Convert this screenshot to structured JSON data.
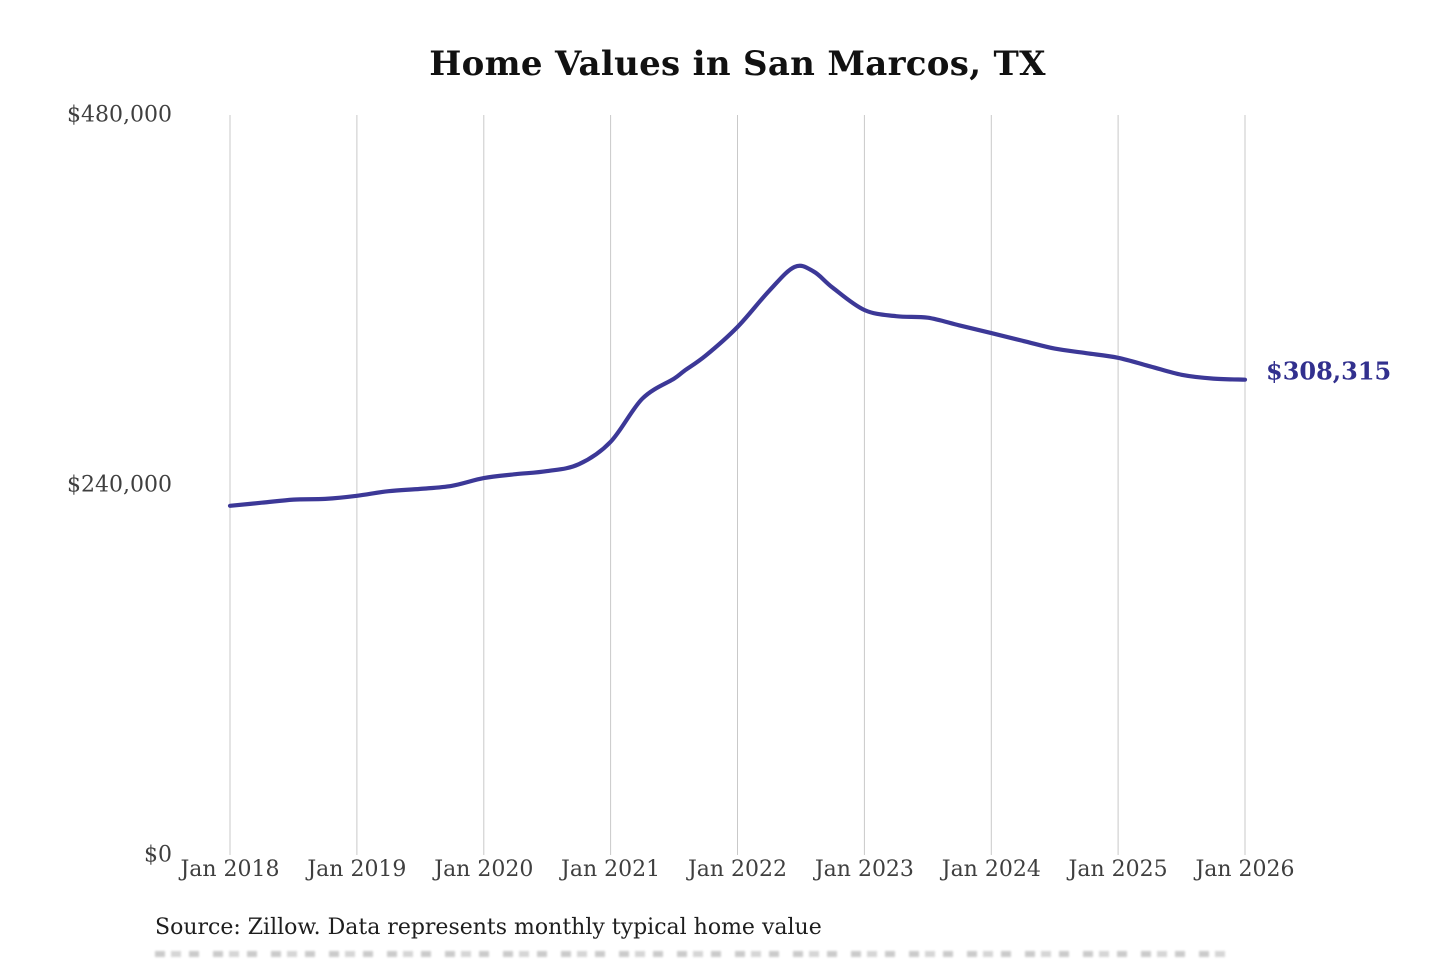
{
  "title": "Home Values in San Marcos, TX",
  "source_note": "Source: Zillow. Data represents monthly typical home value",
  "end_label": "$308,315",
  "colors": {
    "line": "#3c3897",
    "end_label": "#32308e",
    "gridline": "#c9c9c9",
    "tick_text": "#3f3f3f",
    "title_text": "#111111",
    "source_text": "#1e1e1e",
    "background": "#ffffff"
  },
  "chart_data": {
    "type": "line",
    "title": "Home Values in San Marcos, TX",
    "xlabel": "",
    "ylabel": "",
    "xlim": [
      2018,
      2026
    ],
    "ylim": [
      0,
      480000
    ],
    "grid": "vertical-only",
    "legend": "none",
    "x_ticks": [
      {
        "v": 2018,
        "label": "Jan 2018"
      },
      {
        "v": 2019,
        "label": "Jan 2019"
      },
      {
        "v": 2020,
        "label": "Jan 2020"
      },
      {
        "v": 2021,
        "label": "Jan 2021"
      },
      {
        "v": 2022,
        "label": "Jan 2022"
      },
      {
        "v": 2023,
        "label": "Jan 2023"
      },
      {
        "v": 2024,
        "label": "Jan 2024"
      },
      {
        "v": 2025,
        "label": "Jan 2025"
      },
      {
        "v": 2026,
        "label": "Jan 2026"
      }
    ],
    "y_ticks": [
      {
        "v": 0,
        "label": "$0"
      },
      {
        "v": 240000,
        "label": "$240,000"
      },
      {
        "v": 480000,
        "label": "$480,000"
      }
    ],
    "end_annotation": {
      "text": "$308,315",
      "value": 308315,
      "x": 2026
    },
    "series": [
      {
        "name": "Monthly typical home value",
        "color": "#3c3897",
        "points": [
          [
            2018.0,
            226500
          ],
          [
            2018.25,
            228500
          ],
          [
            2018.5,
            230500
          ],
          [
            2018.75,
            231000
          ],
          [
            2019.0,
            233000
          ],
          [
            2019.25,
            236000
          ],
          [
            2019.5,
            237500
          ],
          [
            2019.75,
            239500
          ],
          [
            2020.0,
            244500
          ],
          [
            2020.25,
            247000
          ],
          [
            2020.5,
            249000
          ],
          [
            2020.75,
            253500
          ],
          [
            2021.0,
            268000
          ],
          [
            2021.25,
            296000
          ],
          [
            2021.5,
            309000
          ],
          [
            2021.58,
            314000
          ],
          [
            2021.75,
            324000
          ],
          [
            2022.0,
            342500
          ],
          [
            2022.25,
            366000
          ],
          [
            2022.45,
            381500
          ],
          [
            2022.6,
            378500
          ],
          [
            2022.75,
            368000
          ],
          [
            2023.0,
            353500
          ],
          [
            2023.25,
            349500
          ],
          [
            2023.5,
            348500
          ],
          [
            2023.75,
            343500
          ],
          [
            2024.0,
            338500
          ],
          [
            2024.25,
            333500
          ],
          [
            2024.5,
            328500
          ],
          [
            2024.75,
            325500
          ],
          [
            2025.0,
            322500
          ],
          [
            2025.25,
            317000
          ],
          [
            2025.5,
            311500
          ],
          [
            2025.75,
            309000
          ],
          [
            2026.0,
            308315
          ]
        ]
      }
    ]
  }
}
